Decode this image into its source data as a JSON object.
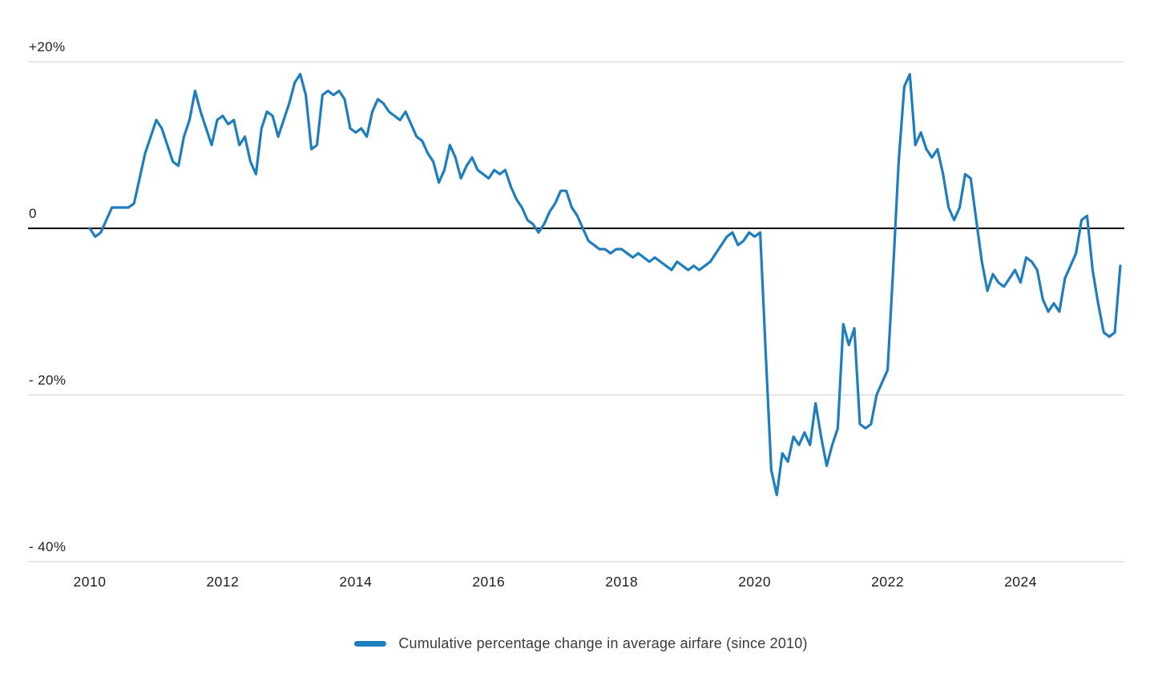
{
  "page": {
    "background": "#ffffff"
  },
  "chart_data": {
    "type": "line",
    "title": "",
    "legend_label": "Cumulative percentage change in average airfare (since 2010)",
    "x_start": "2010-01",
    "x_frequency": "monthly",
    "x_tick_labels": [
      "2010",
      "2012",
      "2014",
      "2016",
      "2018",
      "2020",
      "2022",
      "2024"
    ],
    "y_ticks": [
      {
        "label": "+20%",
        "value": 20
      },
      {
        "label": "0",
        "value": 0
      },
      {
        "label": "- 20%",
        "value": -20
      },
      {
        "label": "- 40%",
        "value": -40
      }
    ],
    "y_gridlines": [
      20,
      -20,
      -40
    ],
    "zero_line": 0,
    "ylim": [
      -40,
      21
    ],
    "grid": "horizontal-only",
    "legend_position": "bottom-center",
    "line_color": "#1d7dbd",
    "gridline_color": "#cccccc",
    "zero_line_color": "#000000",
    "text_color": "#1f1f1f",
    "values_unit": "percent",
    "values_by_year": {
      "2010": [
        0,
        -1,
        -0.5,
        1,
        2.5,
        2.5,
        2.5,
        2.5,
        3,
        6,
        9,
        11
      ],
      "2011": [
        13,
        12,
        10,
        8,
        7.5,
        11,
        13,
        16.5,
        14,
        12,
        10,
        13
      ],
      "2012": [
        13.5,
        12.5,
        13,
        10,
        11,
        8,
        6.5,
        12,
        14,
        13.5,
        11,
        13
      ],
      "2013": [
        15,
        17.5,
        18.5,
        16,
        9.5,
        10,
        16,
        16.5,
        16,
        16.5,
        15.5,
        12
      ],
      "2014": [
        11.5,
        12,
        11,
        14,
        15.5,
        15,
        14,
        13.5,
        13,
        14,
        12.5,
        11
      ],
      "2015": [
        10.5,
        9,
        8,
        5.5,
        7,
        10,
        8.5,
        6,
        7.5,
        8.5,
        7,
        6.5
      ],
      "2016": [
        6,
        7,
        6.5,
        7,
        5,
        3.5,
        2.5,
        1,
        0.5,
        -0.5,
        0.5,
        2
      ],
      "2017": [
        3,
        4.5,
        4.5,
        2.5,
        1.5,
        0,
        -1.5,
        -2,
        -2.5,
        -2.5,
        -3,
        -2.5
      ],
      "2018": [
        -2.5,
        -3,
        -3.5,
        -3,
        -3.5,
        -4,
        -3.5,
        -4,
        -4.5,
        -5,
        -4,
        -4.5
      ],
      "2019": [
        -5,
        -4.5,
        -5,
        -4.5,
        -4,
        -3,
        -2,
        -1,
        -0.5,
        -2,
        -1.5,
        -0.5
      ],
      "2020": [
        -1,
        -0.5,
        -15,
        -29,
        -32,
        -27,
        -28,
        -25,
        -26,
        -24.5,
        -26,
        -21
      ],
      "2021": [
        -25,
        -28.5,
        -26,
        -24,
        -11.5,
        -14,
        -12,
        -23.5,
        -24,
        -23.5,
        -20,
        -18.5
      ],
      "2022": [
        -17,
        -5,
        8,
        17,
        18.5,
        10,
        11.5,
        9.5,
        8.5,
        9.5,
        6.5,
        2.5
      ],
      "2023": [
        1,
        2.5,
        6.5,
        6,
        1,
        -4,
        -7.5,
        -5.5,
        -6.5,
        -7,
        -6,
        -5
      ],
      "2024": [
        -6.5,
        -3.5,
        -4,
        -5,
        -8.5,
        -10,
        -9,
        -10,
        -6,
        -4.5,
        -3,
        1
      ],
      "2025": [
        1.5,
        -5,
        -9,
        -12.5,
        -13,
        -12.5,
        -4.5
      ]
    }
  }
}
